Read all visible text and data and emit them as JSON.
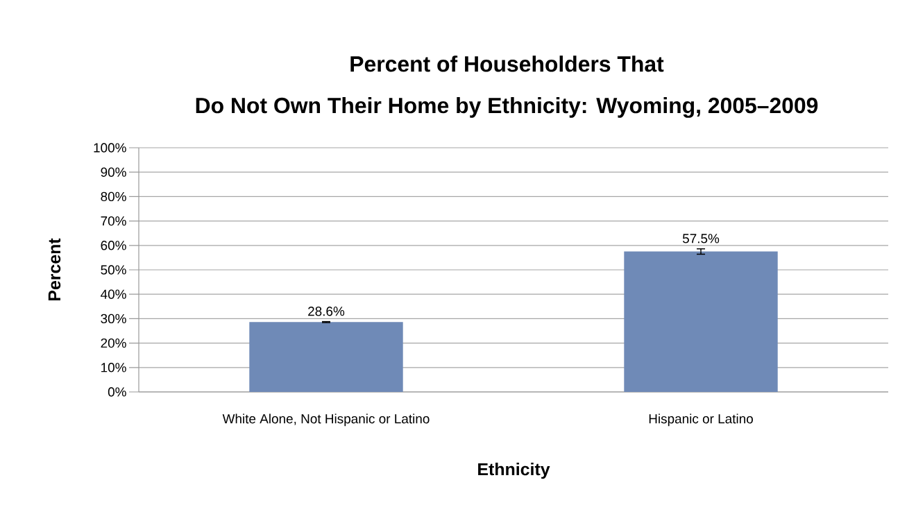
{
  "chart_data": {
    "type": "bar",
    "title": "Percent of Householders That\nDo Not Own Their Home by Ethnicity: Wyoming, 2005–2009",
    "xlabel": "Ethnicity",
    "ylabel": "Percent",
    "categories": [
      "White Alone, Not Hispanic or Latino",
      "Hispanic or Latino"
    ],
    "values": [
      28.6,
      57.5
    ],
    "errors": [
      0.2,
      1.1
    ],
    "value_labels": [
      "28.6%",
      "57.5%"
    ],
    "color": "#6f8ab7",
    "ylim": [
      0,
      100
    ],
    "yticks": [
      {
        "value": 0,
        "label": "0%"
      },
      {
        "value": 10,
        "label": "10%"
      },
      {
        "value": 20,
        "label": "20%"
      },
      {
        "value": 30,
        "label": "30%"
      },
      {
        "value": 40,
        "label": "40%"
      },
      {
        "value": 50,
        "label": "50%"
      },
      {
        "value": 60,
        "label": "60%"
      },
      {
        "value": 70,
        "label": "70%"
      },
      {
        "value": 80,
        "label": "80%"
      },
      {
        "value": 90,
        "label": "90%"
      },
      {
        "value": 100,
        "label": "100%"
      }
    ],
    "grid": "y"
  }
}
